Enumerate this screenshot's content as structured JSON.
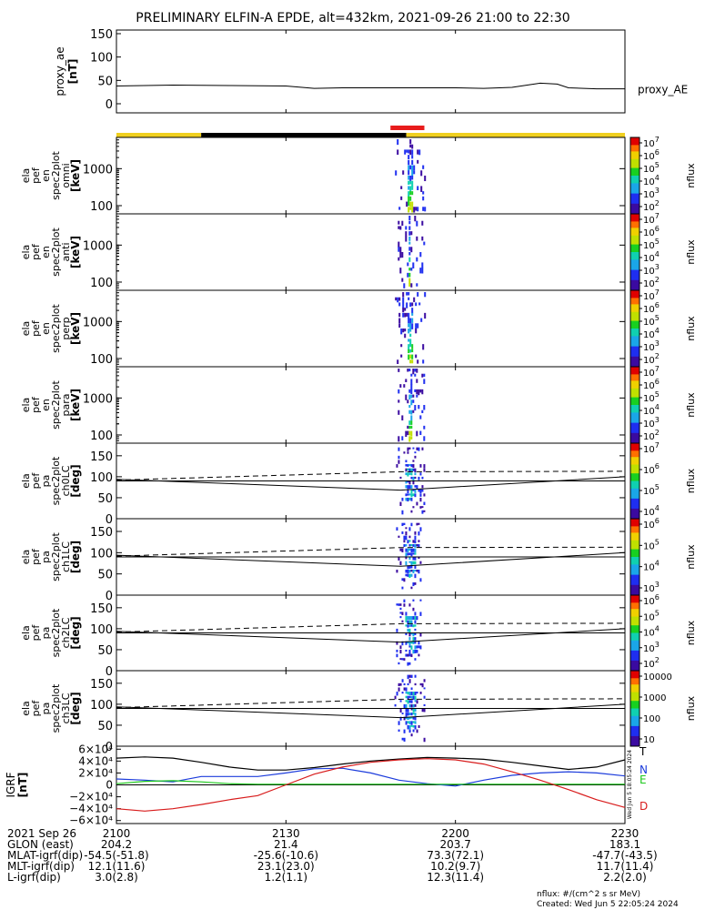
{
  "title": "PRELIMINARY ELFIN-A EPDE, alt=432km, 2021-09-26 21:00 to 22:30",
  "time_range_min": [
    0,
    90
  ],
  "xticks": [
    {
      "t": 0,
      "time": "2100",
      "glon": "204.2",
      "mlat": "-54.5(-51.8)",
      "mlt": "12.1(11.6)",
      "l": "3.0(2.8)"
    },
    {
      "t": 30,
      "time": "2130",
      "glon": "21.4",
      "mlat": "-25.6(-10.6)",
      "mlt": "23.1(23.0)",
      "l": "1.2(1.1)"
    },
    {
      "t": 60,
      "time": "2200",
      "glon": "203.7",
      "mlat": "73.3(72.1)",
      "mlt": "10.2(9.7)",
      "l": "12.3(11.4)"
    },
    {
      "t": 90,
      "time": "2230",
      "glon": "183.1",
      "mlat": "-47.7(-43.5)",
      "mlt": "11.7(11.4)",
      "l": "2.2(2.0)"
    }
  ],
  "footer_labels": {
    "date": "2021 Sep 26",
    "glon": "GLON (east)",
    "mlat": "MLAT-igrf(dip)",
    "mlt": "MLT-igrf(dip)",
    "l": "L-igrf(dip)"
  },
  "footnote": {
    "units": "nflux: #/(cm^2 s sr MeV)",
    "created": "Created: Wed Jun  5 22:05:24 2024"
  },
  "side_timestamp": "Wed Jun  5 18:05:24 2024",
  "colors": {
    "sunlit_bar": "#f0d020",
    "shadow_bar": "#000000",
    "science_zone_bar": "#e81c1c",
    "grf_t": "#000000",
    "grf_n": "#1c3cdc",
    "grf_e": "#1cc81c",
    "grf_d": "#d81c1c"
  },
  "chart_data": [
    {
      "type": "line",
      "panel": "proxy_ae",
      "ylabel": "proxy_ae [nT]",
      "legend": "proxy_AE",
      "ylim": [
        0,
        150
      ],
      "yticks": [
        0,
        50,
        100,
        150
      ],
      "x": [
        0,
        10,
        20,
        30,
        35,
        40,
        50,
        60,
        65,
        70,
        75,
        78,
        80,
        85,
        90
      ],
      "values": [
        38,
        40,
        39,
        38,
        33,
        34,
        34,
        34,
        33,
        35,
        44,
        42,
        34,
        32,
        32
      ]
    },
    {
      "type": "bar",
      "panel": "orbit_status",
      "segments": [
        {
          "state": "sunlit",
          "from": 0,
          "to": 15
        },
        {
          "state": "shadow",
          "from": 15,
          "to": 51.3
        },
        {
          "state": "sunlit",
          "from": 51.3,
          "to": 90
        }
      ],
      "science_zone": {
        "from": 48.5,
        "to": 54.5
      }
    },
    {
      "type": "heatmap",
      "panel": "spec_omni",
      "ylabel": [
        "ela",
        "pef",
        "en",
        "spec2plot",
        "omni",
        "[keV]"
      ],
      "yscale": "log",
      "ylim": [
        60,
        7000
      ],
      "yticks": [
        100,
        1000
      ],
      "ytick_labels": [
        "100",
        "1000"
      ],
      "color_label": "nflux",
      "color_ticks": [
        "10^2",
        "10^3",
        "10^4",
        "10^5",
        "10^6",
        "10^7"
      ],
      "data_interval": [
        49.3,
        54.6
      ],
      "peak_interval": [
        51.4,
        52.2
      ]
    },
    {
      "type": "heatmap",
      "panel": "spec_anti",
      "ylabel": [
        "ela",
        "pef",
        "en",
        "spec2plot",
        "anti",
        "[keV]"
      ],
      "yscale": "log",
      "ylim": [
        60,
        7000
      ],
      "yticks": [
        100,
        1000
      ],
      "ytick_labels": [
        "100",
        "1000"
      ],
      "color_label": "nflux",
      "color_ticks": [
        "10^2",
        "10^3",
        "10^4",
        "10^5",
        "10^6",
        "10^7"
      ],
      "data_interval": [
        49.8,
        54.6
      ],
      "peak_interval": [
        51.5,
        52.0
      ]
    },
    {
      "type": "heatmap",
      "panel": "spec_perp",
      "ylabel": [
        "ela",
        "pef",
        "en",
        "spec2plot",
        "perp",
        "[keV]"
      ],
      "yscale": "log",
      "ylim": [
        60,
        7000
      ],
      "yticks": [
        100,
        1000
      ],
      "ytick_labels": [
        "100",
        "1000"
      ],
      "color_label": "nflux",
      "color_ticks": [
        "10^2",
        "10^3",
        "10^4",
        "10^5",
        "10^6",
        "10^7"
      ],
      "data_interval": [
        49.3,
        54.6
      ],
      "peak_interval": [
        51.3,
        52.3
      ]
    },
    {
      "type": "heatmap",
      "panel": "spec_para",
      "ylabel": [
        "ela",
        "pef",
        "en",
        "spec2plot",
        "para",
        "[keV]"
      ],
      "yscale": "log",
      "ylim": [
        60,
        7000
      ],
      "yticks": [
        100,
        1000
      ],
      "ytick_labels": [
        "100",
        "1000"
      ],
      "color_label": "nflux",
      "color_ticks": [
        "10^2",
        "10^3",
        "10^4",
        "10^5",
        "10^6",
        "10^7"
      ],
      "data_interval": [
        49.8,
        54.6
      ],
      "peak_interval": [
        51.6,
        52.1
      ]
    },
    {
      "type": "heatmap",
      "panel": "pa_ch0",
      "ylabel": [
        "ela",
        "pef",
        "pa",
        "spec2plot",
        "ch0LC",
        "[deg]"
      ],
      "ylim": [
        0,
        180
      ],
      "yticks": [
        0,
        50,
        100,
        150
      ],
      "color_label": "nflux",
      "color_ticks": [
        "10^4",
        "10^5",
        "10^6",
        "10^7"
      ],
      "data_interval": [
        49.5,
        54.6
      ],
      "loss_cone_solid": {
        "x": [
          0,
          50.3,
          90
        ],
        "y": [
          94,
          68,
          100
        ]
      },
      "loss_cone_dashed": {
        "x": [
          0,
          50.3,
          90
        ],
        "y": [
          92,
          112,
          113
        ]
      }
    },
    {
      "type": "heatmap",
      "panel": "pa_ch1",
      "ylabel": [
        "ela",
        "pef",
        "pa",
        "spec2plot",
        "ch1LC",
        "[deg]"
      ],
      "ylim": [
        0,
        180
      ],
      "yticks": [
        0,
        50,
        100,
        150
      ],
      "color_label": "nflux",
      "color_ticks": [
        "10^3",
        "10^4",
        "10^5",
        "10^6"
      ],
      "data_interval": [
        49.5,
        54.0
      ],
      "loss_cone_solid": {
        "x": [
          0,
          50.3,
          90
        ],
        "y": [
          94,
          68,
          100
        ]
      },
      "loss_cone_dashed": {
        "x": [
          0,
          50.3,
          90
        ],
        "y": [
          92,
          112,
          113
        ]
      }
    },
    {
      "type": "heatmap",
      "panel": "pa_ch2",
      "ylabel": [
        "ela",
        "pef",
        "pa",
        "spec2plot",
        "ch2LC",
        "[deg]"
      ],
      "ylim": [
        0,
        180
      ],
      "yticks": [
        0,
        50,
        100,
        150
      ],
      "color_label": "nflux",
      "color_ticks": [
        "10^2",
        "10^3",
        "10^4",
        "10^5",
        "10^6"
      ],
      "data_interval": [
        49.5,
        54.0
      ],
      "loss_cone_solid": {
        "x": [
          0,
          50.3,
          90
        ],
        "y": [
          94,
          68,
          100
        ]
      },
      "loss_cone_dashed": {
        "x": [
          0,
          50.3,
          90
        ],
        "y": [
          92,
          112,
          113
        ]
      }
    },
    {
      "type": "heatmap",
      "panel": "pa_ch3",
      "ylabel": [
        "ela",
        "pef",
        "pa",
        "spec2plot",
        "ch3LC",
        "[deg]"
      ],
      "ylim": [
        0,
        180
      ],
      "yticks": [
        0,
        50,
        100,
        150
      ],
      "color_label": "nflux",
      "color_ticks": [
        "10",
        "100",
        "1000",
        "10000"
      ],
      "data_interval": [
        49.2,
        54.6
      ],
      "loss_cone_solid": {
        "x": [
          0,
          50.3,
          90
        ],
        "y": [
          94,
          68,
          100
        ]
      },
      "loss_cone_dashed": {
        "x": [
          0,
          50.3,
          90
        ],
        "y": [
          92,
          112,
          113
        ]
      }
    },
    {
      "type": "line",
      "panel": "igrf",
      "ylabel": "IGRF [nT]",
      "ylim": [
        -65000,
        65000
      ],
      "yticks": [
        -60000,
        -40000,
        -20000,
        0,
        20000,
        40000,
        60000
      ],
      "ytick_labels": [
        "−6×10⁴",
        "−4×10⁴",
        "−2×10⁴",
        "0",
        "2×10⁴",
        "4×10⁴",
        "6×10⁴"
      ],
      "x": [
        0,
        5,
        10,
        15,
        20,
        25,
        30,
        35,
        40,
        45,
        50,
        55,
        60,
        65,
        70,
        75,
        80,
        85,
        90
      ],
      "series": [
        {
          "name": "T",
          "values": [
            45000,
            47000,
            45000,
            38000,
            30000,
            25000,
            25000,
            29000,
            35000,
            40000,
            43500,
            46000,
            45000,
            43000,
            38000,
            32000,
            26000,
            30000,
            42000
          ]
        },
        {
          "name": "N",
          "values": [
            10000,
            8000,
            5000,
            14000,
            14000,
            14000,
            20000,
            27000,
            28000,
            20000,
            8000,
            2000,
            -2000,
            8000,
            16000,
            20000,
            22000,
            20000,
            15000
          ]
        },
        {
          "name": "E",
          "values": [
            2000,
            6000,
            7000,
            5000,
            2000,
            1000,
            1000,
            1000,
            1000,
            1000,
            1000,
            1000,
            1000,
            1000,
            1000,
            1000,
            1000,
            1000,
            1000
          ]
        },
        {
          "name": "D",
          "values": [
            -40000,
            -44000,
            -40000,
            -33000,
            -25000,
            -18000,
            0,
            18000,
            30000,
            38000,
            42000,
            44000,
            42000,
            35000,
            22000,
            8000,
            -8000,
            -25000,
            -38000
          ]
        }
      ]
    }
  ]
}
